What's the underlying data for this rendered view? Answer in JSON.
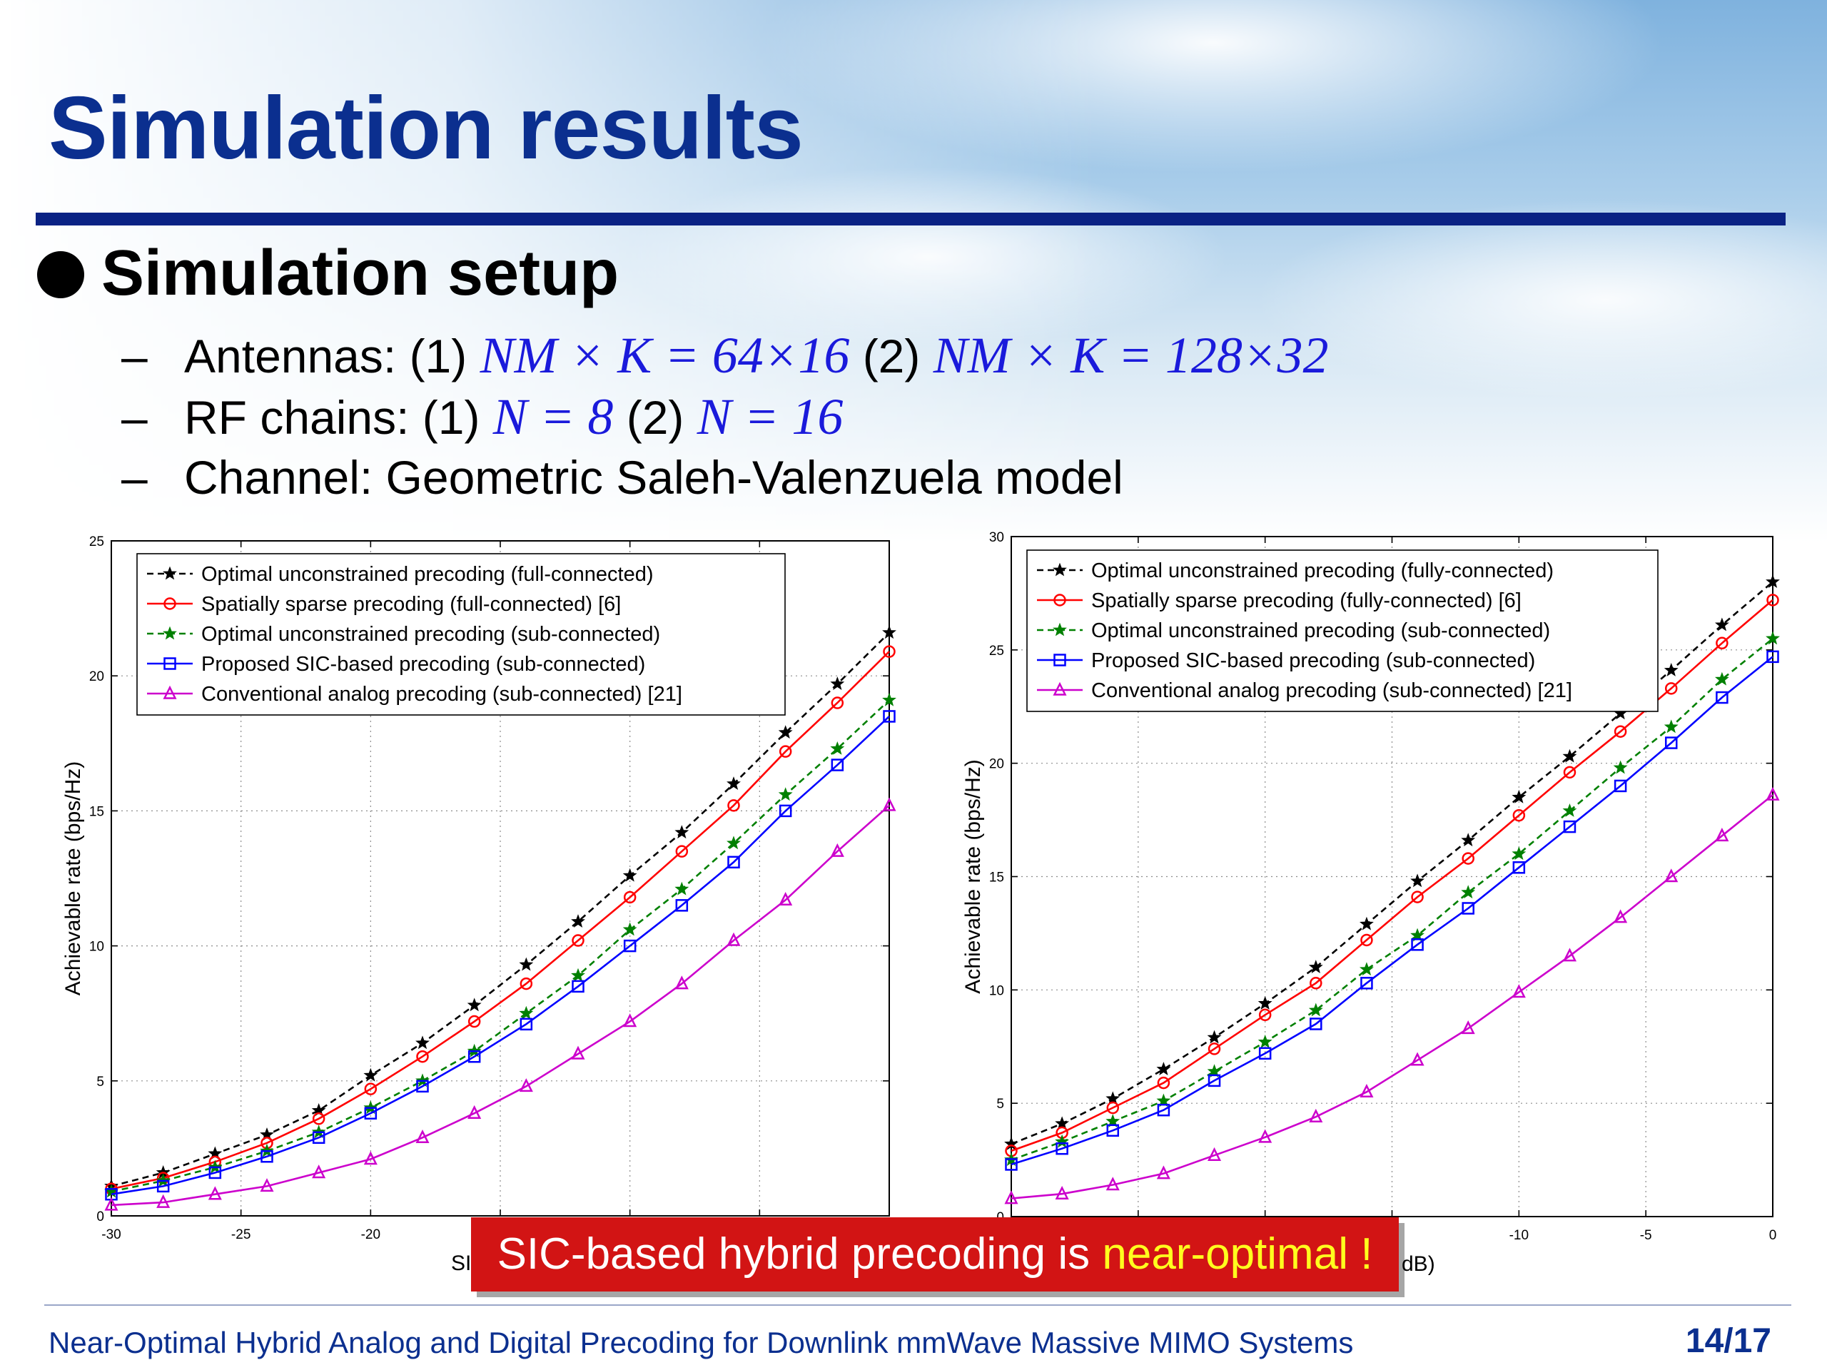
{
  "slide": {
    "title": "Simulation results",
    "setup_heading": "Simulation setup",
    "items": [
      {
        "dash": "–",
        "label": "Antennas: (1)",
        "math1": "NM × K = 64×16",
        "mid": "(2)",
        "math2": "NM × K = 128×32"
      },
      {
        "dash": "–",
        "label": "RF chains: (1)",
        "math1": "N = 8",
        "mid": "(2)",
        "math2": "N = 16"
      },
      {
        "dash": "–",
        "label": "Channel: Geometric Saleh-Valenzuela model"
      }
    ],
    "callout": {
      "text": "SIC-based hybrid precoding is ",
      "highlight": "near-optimal !"
    },
    "footer": "Near-Optimal Hybrid Analog and Digital Precoding for Downlink mmWave Massive MIMO Systems",
    "page": "14/17"
  },
  "chart_data": [
    {
      "type": "line",
      "ylabel": "Achievable rate (bps/Hz)",
      "xlabel_visible": "SI",
      "xlim": [
        -30,
        0
      ],
      "ylim": [
        0,
        25
      ],
      "xticks": [
        "-30",
        "-25",
        "-20"
      ],
      "yticks": [
        "0",
        "5",
        "10",
        "15",
        "20",
        "25"
      ],
      "grid": true,
      "legend_position": "top-left",
      "x": [
        -30,
        -28,
        -26,
        -24,
        -22,
        -20,
        -18,
        -16,
        -14,
        -12,
        -10,
        -8,
        -6,
        -4,
        -2,
        0
      ],
      "series": [
        {
          "name": "Optimal unconstrained precoding (full-connected)",
          "color": "#000000",
          "dash": true,
          "marker": "star",
          "values": [
            1.1,
            1.6,
            2.3,
            3.0,
            3.9,
            5.2,
            6.4,
            7.8,
            9.3,
            10.9,
            12.6,
            14.2,
            16.0,
            17.9,
            19.7,
            21.6
          ]
        },
        {
          "name": "Spatially sparse precoding (full-connected) [6]",
          "color": "#ff0000",
          "dash": false,
          "marker": "circle",
          "values": [
            1.0,
            1.4,
            2.0,
            2.7,
            3.6,
            4.7,
            5.9,
            7.2,
            8.6,
            10.2,
            11.8,
            13.5,
            15.2,
            17.2,
            19.0,
            20.9
          ]
        },
        {
          "name": "Optimal unconstrained precoding (sub-connected)",
          "color": "#008000",
          "dash": true,
          "marker": "star",
          "values": [
            0.9,
            1.3,
            1.8,
            2.4,
            3.1,
            4.0,
            5.0,
            6.1,
            7.5,
            8.9,
            10.6,
            12.1,
            13.8,
            15.6,
            17.3,
            19.1
          ]
        },
        {
          "name": "Proposed SIC-based precoding (sub-connected)",
          "color": "#0000ff",
          "dash": false,
          "marker": "square",
          "values": [
            0.8,
            1.1,
            1.6,
            2.2,
            2.9,
            3.8,
            4.8,
            5.9,
            7.1,
            8.5,
            10.0,
            11.5,
            13.1,
            15.0,
            16.7,
            18.5
          ]
        },
        {
          "name": "Conventional analog precoding (sub-connected) [21]",
          "color": "#cc00cc",
          "dash": false,
          "marker": "triangle",
          "values": [
            0.4,
            0.5,
            0.8,
            1.1,
            1.6,
            2.1,
            2.9,
            3.8,
            4.8,
            6.0,
            7.2,
            8.6,
            10.2,
            11.7,
            13.5,
            15.2
          ]
        }
      ]
    },
    {
      "type": "line",
      "ylabel": "Achievable rate (bps/Hz)",
      "xlabel_visible": "dB)",
      "xlim": [
        -30,
        0
      ],
      "ylim": [
        0,
        30
      ],
      "xticks": [
        "-10",
        "-5",
        "0"
      ],
      "yticks": [
        "0",
        "5",
        "10",
        "15",
        "20",
        "25",
        "30"
      ],
      "grid": true,
      "legend_position": "top-left",
      "x": [
        -30,
        -28,
        -26,
        -24,
        -22,
        -20,
        -18,
        -16,
        -14,
        -12,
        -10,
        -8,
        -6,
        -4,
        -2,
        0
      ],
      "series": [
        {
          "name": "Optimal unconstrained precoding (fully-connected)",
          "color": "#000000",
          "dash": true,
          "marker": "star",
          "values": [
            3.2,
            4.1,
            5.2,
            6.5,
            7.9,
            9.4,
            11.0,
            12.9,
            14.8,
            16.6,
            18.5,
            20.3,
            22.2,
            24.1,
            26.1,
            28.0
          ]
        },
        {
          "name": "Spatially sparse precoding (fully-connected) [6]",
          "color": "#ff0000",
          "dash": false,
          "marker": "circle",
          "values": [
            2.9,
            3.7,
            4.8,
            5.9,
            7.4,
            8.9,
            10.3,
            12.2,
            14.1,
            15.8,
            17.7,
            19.6,
            21.4,
            23.3,
            25.3,
            27.2
          ]
        },
        {
          "name": "Optimal unconstrained precoding (sub-connected)",
          "color": "#008000",
          "dash": true,
          "marker": "star",
          "values": [
            2.5,
            3.3,
            4.2,
            5.1,
            6.4,
            7.7,
            9.1,
            10.9,
            12.4,
            14.3,
            16.0,
            17.9,
            19.8,
            21.6,
            23.7,
            25.5
          ]
        },
        {
          "name": "Proposed SIC-based precoding (sub-connected)",
          "color": "#0000ff",
          "dash": false,
          "marker": "square",
          "values": [
            2.3,
            3.0,
            3.8,
            4.7,
            6.0,
            7.2,
            8.5,
            10.3,
            12.0,
            13.6,
            15.4,
            17.2,
            19.0,
            20.9,
            22.9,
            24.7
          ]
        },
        {
          "name": "Conventional analog precoding (sub-connected) [21]",
          "color": "#cc00cc",
          "dash": false,
          "marker": "triangle",
          "values": [
            0.8,
            1.0,
            1.4,
            1.9,
            2.7,
            3.5,
            4.4,
            5.5,
            6.9,
            8.3,
            9.9,
            11.5,
            13.2,
            15.0,
            16.8,
            18.6
          ]
        }
      ]
    }
  ]
}
